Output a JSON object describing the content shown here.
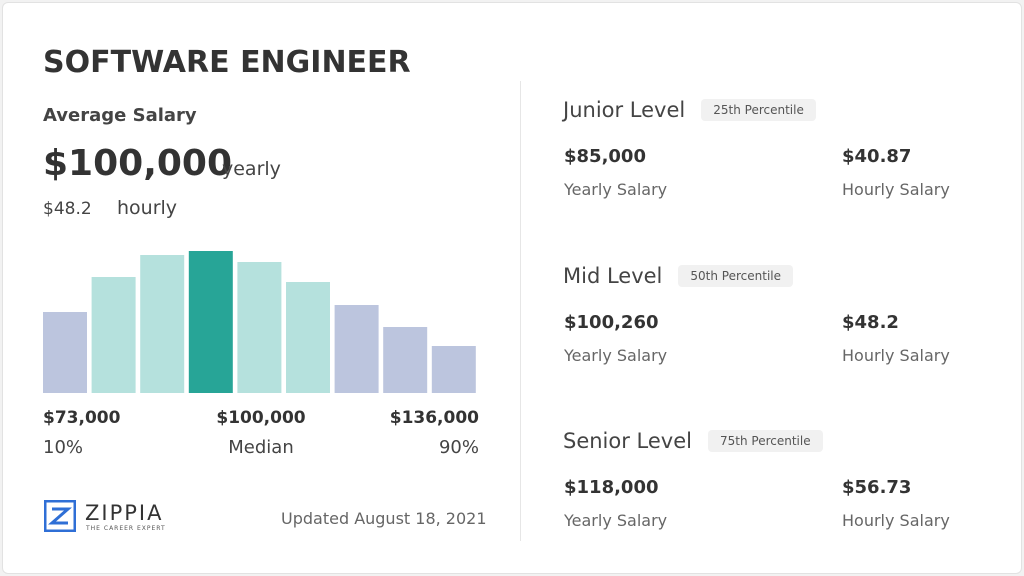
{
  "title": "SOFTWARE ENGINEER",
  "average": {
    "label": "Average Salary",
    "amount": "$100,000",
    "amount_unit": "yearly",
    "hourly": "$48.2",
    "hourly_unit": "hourly"
  },
  "histogram": {
    "values": [
      81,
      116,
      138,
      142,
      131,
      111,
      88,
      66,
      47
    ],
    "colors": [
      "#bcc5de",
      "#b5e1dd",
      "#b5e1dd",
      "#27a597",
      "#b5e1dd",
      "#b5e1dd",
      "#bcc5de",
      "#bcc5de",
      "#bcc5de"
    ],
    "labels": [
      {
        "amount": "$73,000",
        "note": "10%"
      },
      {
        "amount": "$100,000",
        "note": "Median"
      },
      {
        "amount": "$136,000",
        "note": "90%"
      }
    ]
  },
  "logo": {
    "name": "ZIPPIA",
    "tagline": "THE CAREER EXPERT"
  },
  "updated": "Updated August 18, 2021",
  "levels": [
    {
      "name": "Junior Level",
      "percentile": "25th Percentile",
      "yearly": "$85,000",
      "yearly_label": "Yearly Salary",
      "hourly": "$40.87",
      "hourly_label": "Hourly Salary"
    },
    {
      "name": "Mid Level",
      "percentile": "50th Percentile",
      "yearly": "$100,260",
      "yearly_label": "Yearly Salary",
      "hourly": "$48.2",
      "hourly_label": "Hourly Salary"
    },
    {
      "name": "Senior Level",
      "percentile": "75th Percentile",
      "yearly": "$118,000",
      "yearly_label": "Yearly Salary",
      "hourly": "$56.73",
      "hourly_label": "Hourly Salary"
    }
  ]
}
